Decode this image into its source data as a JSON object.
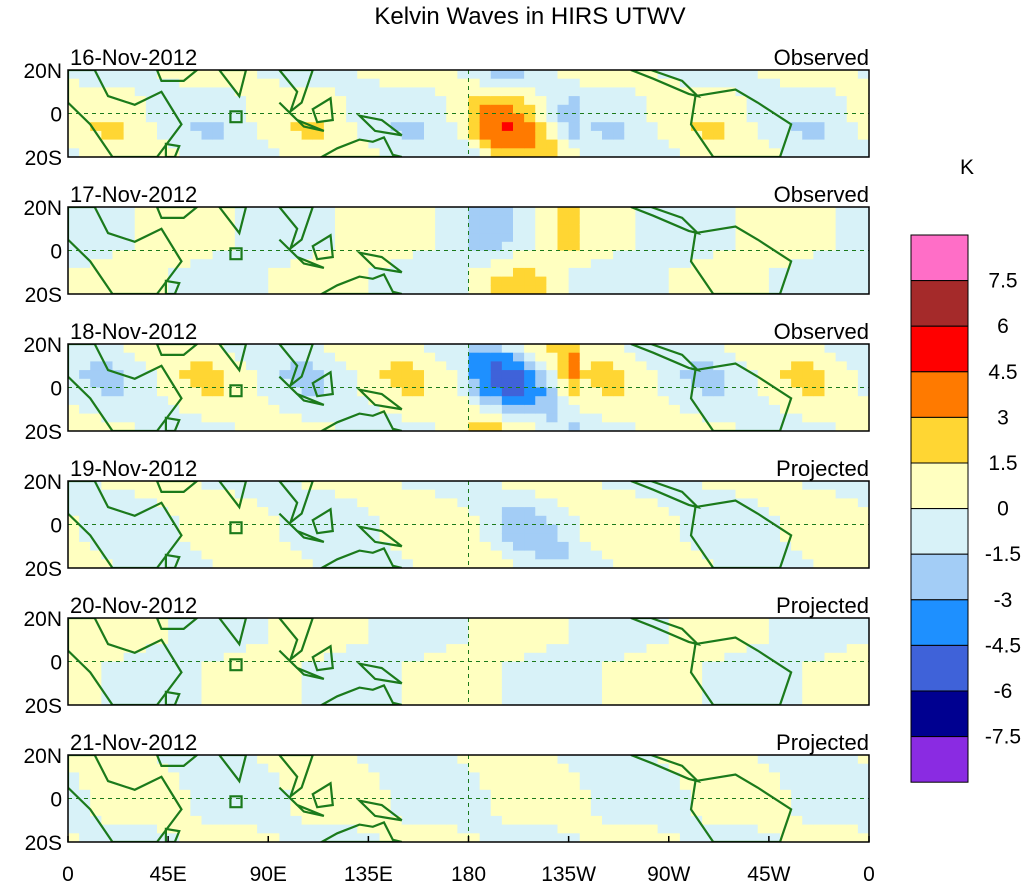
{
  "chart_data": {
    "type": "heatmap",
    "title": "Kelvin Waves in HIRS UTWV",
    "units": "K",
    "xlabel": "",
    "ylabel": "",
    "x_tick_labels": [
      "0",
      "45E",
      "90E",
      "135E",
      "180",
      "135W",
      "90W",
      "45W",
      "0"
    ],
    "y_tick_labels": [
      "20N",
      "0",
      "20S"
    ],
    "lon_range": [
      0,
      360
    ],
    "lat_range": [
      -20,
      20
    ],
    "colorbar": {
      "levels": [
        "7.5",
        "6",
        "4.5",
        "3",
        "1.5",
        "0",
        "-1.5",
        "-3",
        "-4.5",
        "-6",
        "-7.5"
      ],
      "colors": [
        "#ff6ec7",
        "#a52a2a",
        "#ff0000",
        "#ff7a00",
        "#ffd633",
        "#ffffc0",
        "#d8f2f8",
        "#a3cdf6",
        "#1e90ff",
        "#3f62d9",
        "#000090",
        "#8a2be2"
      ]
    },
    "panels": [
      {
        "date": "16-Nov-2012",
        "label": "Observed"
      },
      {
        "date": "17-Nov-2012",
        "label": "Observed"
      },
      {
        "date": "18-Nov-2012",
        "label": "Observed"
      },
      {
        "date": "19-Nov-2012",
        "label": "Projected"
      },
      {
        "date": "20-Nov-2012",
        "label": "Projected"
      },
      {
        "date": "21-Nov-2012",
        "label": "Projected"
      }
    ]
  }
}
